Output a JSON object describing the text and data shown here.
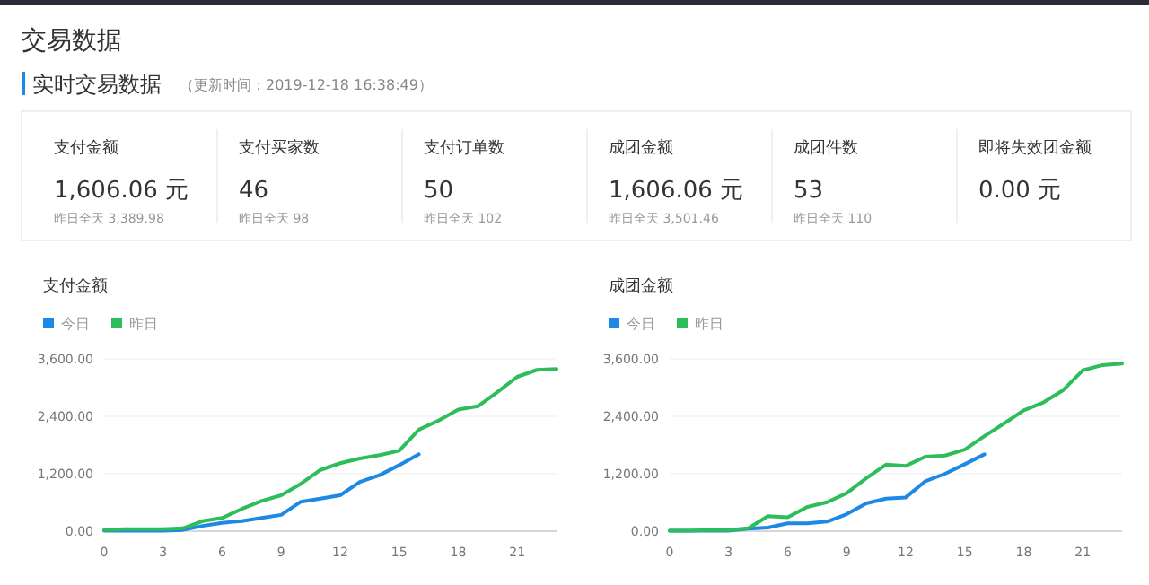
{
  "chart_data": [
    {
      "type": "other",
      "title": "交易数据",
      "subtitle": "实时交易数据",
      "annotations": [
        "（更新时间：2019-12-18 16:38:49）"
      ]
    },
    {
      "type": "other",
      "title": "支付金额",
      "annotations": [
        "1,606.06 元",
        "昨日全天 3,389.98"
      ]
    },
    {
      "type": "other",
      "title": "支付买家数",
      "annotations": [
        "46",
        "昨日全天 98"
      ]
    },
    {
      "type": "other",
      "title": "支付订单数",
      "annotations": [
        "50",
        "昨日全天 102"
      ]
    },
    {
      "type": "other",
      "title": "成团金额",
      "annotations": [
        "1,606.06 元",
        "昨日全天 3,501.46"
      ]
    },
    {
      "type": "other",
      "title": "成团件数",
      "annotations": [
        "53",
        "昨日全天 110"
      ]
    },
    {
      "type": "other",
      "title": "即将失效团金额",
      "annotations": [
        "0.00 元"
      ]
    },
    {
      "type": "line",
      "title": "支付金额",
      "xlim": [
        0,
        23
      ],
      "xticks": [
        0,
        3,
        6,
        9,
        12,
        15,
        18,
        21
      ],
      "ylim": [
        0,
        3600
      ],
      "yticks": [
        {
          "value": 0,
          "label": "0.00"
        },
        {
          "value": 1200,
          "label": "1,200.00"
        },
        {
          "value": 2400,
          "label": "2,400.00"
        },
        {
          "value": 3600,
          "label": "3,600.00"
        }
      ],
      "grid": "y",
      "legend": "top left",
      "series": [
        {
          "name": "今日",
          "color": "#1e88e5",
          "x": [
            0,
            1,
            2,
            3,
            4,
            5,
            6,
            7,
            8,
            9,
            10,
            11,
            12,
            13,
            14,
            15,
            16
          ],
          "values": [
            10,
            10,
            10,
            10,
            25,
            110,
            175,
            210,
            275,
            340,
            615,
            680,
            750,
            1030,
            1170,
            1380,
            1606
          ]
        },
        {
          "name": "昨日",
          "color": "#2dbd5a",
          "x": [
            0,
            1,
            2,
            3,
            4,
            5,
            6,
            7,
            8,
            9,
            10,
            11,
            12,
            13,
            14,
            15,
            16,
            17,
            18,
            19,
            20,
            21,
            22,
            23
          ],
          "values": [
            25,
            40,
            40,
            40,
            60,
            210,
            275,
            465,
            630,
            750,
            990,
            1280,
            1420,
            1520,
            1590,
            1680,
            2120,
            2310,
            2540,
            2610,
            2910,
            3225,
            3370,
            3390
          ]
        }
      ]
    },
    {
      "type": "line",
      "title": "成团金额",
      "xlim": [
        0,
        23
      ],
      "xticks": [
        0,
        3,
        6,
        9,
        12,
        15,
        18,
        21
      ],
      "ylim": [
        0,
        3600
      ],
      "yticks": [
        {
          "value": 0,
          "label": "0.00"
        },
        {
          "value": 1200,
          "label": "1,200.00"
        },
        {
          "value": 2400,
          "label": "2,400.00"
        },
        {
          "value": 3600,
          "label": "3,600.00"
        }
      ],
      "grid": "y",
      "legend": "top left",
      "series": [
        {
          "name": "今日",
          "color": "#1e88e5",
          "x": [
            0,
            1,
            2,
            3,
            4,
            5,
            6,
            7,
            8,
            9,
            10,
            11,
            12,
            13,
            14,
            15,
            16
          ],
          "values": [
            10,
            10,
            10,
            10,
            50,
            75,
            165,
            165,
            200,
            355,
            580,
            680,
            705,
            1045,
            1200,
            1400,
            1606
          ]
        },
        {
          "name": "昨日",
          "color": "#2dbd5a",
          "x": [
            0,
            1,
            2,
            3,
            4,
            5,
            6,
            7,
            8,
            9,
            10,
            11,
            12,
            13,
            14,
            15,
            16,
            17,
            18,
            19,
            20,
            21,
            22,
            23
          ],
          "values": [
            10,
            10,
            25,
            25,
            60,
            315,
            290,
            505,
            605,
            795,
            1110,
            1390,
            1365,
            1555,
            1580,
            1705,
            1985,
            2250,
            2525,
            2690,
            2945,
            3360,
            3470,
            3500
          ]
        }
      ]
    }
  ]
}
